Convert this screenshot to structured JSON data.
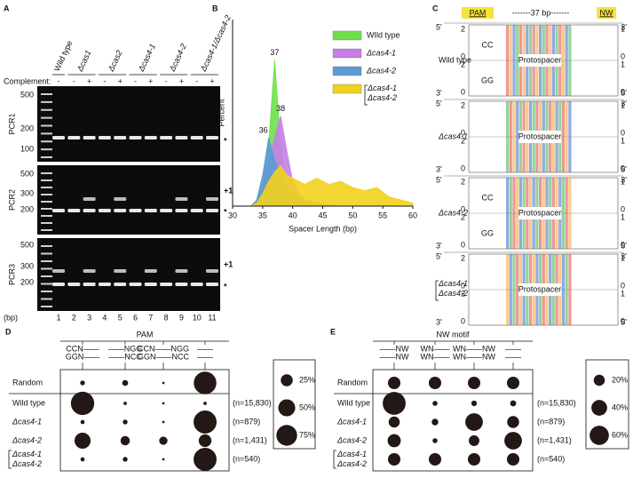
{
  "panel_a": {
    "label": "A",
    "genotypes": [
      "Wild type",
      "Δcas1",
      "Δcas2",
      "Δcas4-1",
      "Δcas4-2",
      "Δcas4-1/Δcas4-2"
    ],
    "complement_label": "Complement:",
    "complement": [
      "-",
      "-",
      "+",
      "-",
      "+",
      "-",
      "+",
      "-",
      "+",
      "-",
      "+"
    ],
    "gels": [
      {
        "name": "PCR1",
        "ladder": [
          500,
          200,
          100
        ],
        "markers": [
          "*"
        ]
      },
      {
        "name": "PCR2",
        "ladder": [
          500,
          300,
          200
        ],
        "markers": [
          "+1",
          "*"
        ]
      },
      {
        "name": "PCR3",
        "ladder": [
          500,
          300,
          200
        ],
        "markers": [
          "+1",
          "*"
        ]
      }
    ],
    "unit": "(bp)",
    "lanes": [
      1,
      2,
      3,
      4,
      5,
      6,
      7,
      8,
      9,
      10,
      11
    ]
  },
  "panel_c": {
    "label": "C",
    "header": [
      "PAM",
      "-------37 bp-------",
      "NW"
    ],
    "five": "5'",
    "three": "3'",
    "spacer": "Protospacer",
    "left_ticks": [
      2,
      0
    ],
    "right_ticks": [
      1,
      0
    ],
    "rows": [
      {
        "name": "Wild type",
        "logo": [
          "CC",
          "GG"
        ]
      },
      {
        "name": "Δcas4-1"
      },
      {
        "name": "Δcas4-2",
        "logo": [
          "CC",
          "GG"
        ]
      },
      {
        "name": "Δcas4-1\nΔcas4-2"
      }
    ]
  },
  "chart_data": [
    {
      "panel": "B",
      "type": "area",
      "xlabel": "Spacer Length (bp)",
      "ylabel": "Percent",
      "x": [
        33,
        34,
        35,
        36,
        37,
        38,
        39,
        40,
        41,
        42,
        44,
        46,
        48,
        50,
        52,
        54,
        56,
        58,
        60
      ],
      "xlim": [
        30,
        60
      ],
      "xticks": [
        30,
        35,
        40,
        45,
        50,
        55,
        60
      ],
      "ylim": [
        0,
        60
      ],
      "series": [
        {
          "name": "WIld type",
          "color": "#6ee04a",
          "values": [
            0,
            1,
            8,
            20,
            47,
            20,
            6,
            2,
            1,
            0.5,
            0,
            0,
            0,
            0,
            0,
            0,
            0,
            0,
            0
          ]
        },
        {
          "name": "Δcas4-1",
          "color": "#c77ee8",
          "values": [
            0,
            0.5,
            5,
            15,
            22,
            29,
            18,
            8,
            4,
            2,
            1,
            0.5,
            0,
            0,
            0,
            0,
            0,
            0,
            0
          ]
        },
        {
          "name": "Δcas4-2",
          "color": "#5b9bd5",
          "values": [
            0,
            2,
            10,
            22,
            15,
            10,
            6,
            4,
            3,
            2,
            1,
            0.5,
            0,
            0,
            0,
            0,
            0,
            0,
            0
          ]
        },
        {
          "name": "Δcas4-1\nΔcas4-2",
          "color": "#f2d21e",
          "values": [
            0,
            1,
            4,
            8,
            11,
            13,
            10,
            9,
            8,
            7,
            9,
            7,
            8,
            6,
            5,
            6,
            3,
            2,
            1
          ]
        }
      ],
      "annotations": [
        {
          "text": "37",
          "x": 37,
          "y": 47,
          "color": "#3a8a6a"
        },
        {
          "text": "38",
          "x": 38,
          "y": 29,
          "color": "#8a3a9a"
        },
        {
          "text": "36",
          "x": 36,
          "y": 22,
          "color": "#3a6aa8"
        }
      ]
    },
    {
      "panel": "D",
      "type": "dot-matrix",
      "label": "D",
      "title": "PAM",
      "columns": [
        [
          "CCN——",
          "GGN——"
        ],
        [
          "——NGG",
          "——NCC"
        ],
        [
          "CCN——NGG",
          "GGN——NCC"
        ],
        [
          "——",
          "——"
        ]
      ],
      "rows": [
        "Random",
        "Wild type",
        "Δcas4-1",
        "Δcas4-2",
        "Δcas4-1\nΔcas4-2"
      ],
      "counts": [
        null,
        "(n=15,830)",
        "(n=879)",
        "(n=1,431)",
        "(n=540)"
      ],
      "values": [
        [
          4,
          6,
          1,
          89
        ],
        [
          95,
          2,
          1,
          2
        ],
        [
          3,
          4,
          1,
          92
        ],
        [
          45,
          15,
          12,
          28
        ],
        [
          3,
          4,
          1,
          92
        ]
      ],
      "color": "#231815",
      "size_legend": [
        {
          "value": 25,
          "label": "25%"
        },
        {
          "value": 50,
          "label": "50%"
        },
        {
          "value": 75,
          "label": "75%"
        }
      ]
    },
    {
      "panel": "E",
      "type": "dot-matrix",
      "label": "E",
      "title": "NW motif",
      "columns": [
        [
          "——NW",
          "——NW"
        ],
        [
          "WN——",
          "WN——"
        ],
        [
          "WN——NW",
          "WN——NW"
        ],
        [
          "——",
          "——"
        ]
      ],
      "rows": [
        "Random",
        "Wild type",
        "Δcas4-1",
        "Δcas4-2",
        "Δcas4-1\nΔcas4-2"
      ],
      "counts": [
        null,
        "(n=15,830)",
        "(n=879)",
        "(n=1,431)",
        "(n=540)"
      ],
      "values": [
        [
          25,
          25,
          25,
          25
        ],
        [
          85,
          4,
          5,
          6
        ],
        [
          20,
          7,
          50,
          23
        ],
        [
          28,
          4,
          18,
          50
        ],
        [
          25,
          25,
          25,
          25
        ]
      ],
      "color": "#231815",
      "size_legend": [
        {
          "value": 20,
          "label": "20%"
        },
        {
          "value": 40,
          "label": "40%"
        },
        {
          "value": 60,
          "label": "60%"
        }
      ]
    }
  ]
}
